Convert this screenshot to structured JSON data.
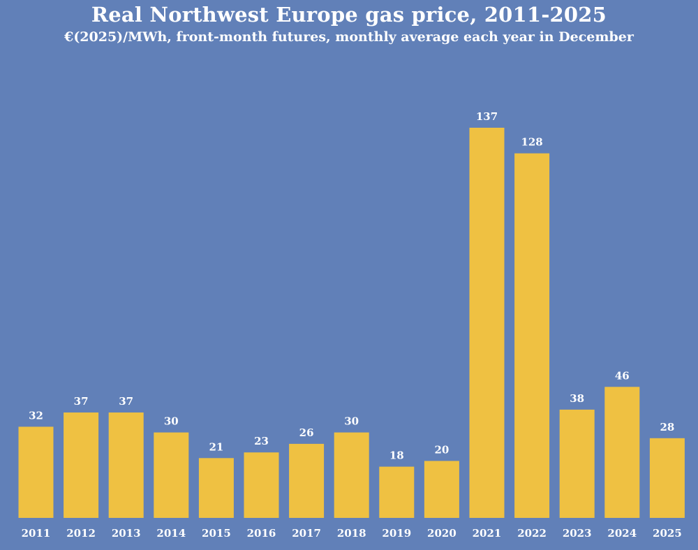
{
  "chart_data": {
    "type": "bar",
    "title": "Real Northwest Europe gas price, 2011-2025",
    "subtitle": "€(2025)/MWh, front-month futures, monthly average each year in December",
    "categories": [
      "2011",
      "2012",
      "2013",
      "2014",
      "2015",
      "2016",
      "2017",
      "2018",
      "2019",
      "2020",
      "2021",
      "2022",
      "2023",
      "2024",
      "2025"
    ],
    "values": [
      32,
      37,
      37,
      30,
      21,
      23,
      26,
      30,
      18,
      20,
      137,
      128,
      38,
      46,
      28
    ],
    "value_labels": [
      "32",
      "37",
      "37",
      "30",
      "21",
      "23",
      "26",
      "30",
      "18",
      "20",
      "137",
      "128",
      "38",
      "46",
      "28"
    ],
    "ylim": [
      0,
      137
    ],
    "grid": false,
    "legend": "none",
    "colors": {
      "background": "#6180b8",
      "bar": "#efc142",
      "text": "#ffffff"
    }
  }
}
